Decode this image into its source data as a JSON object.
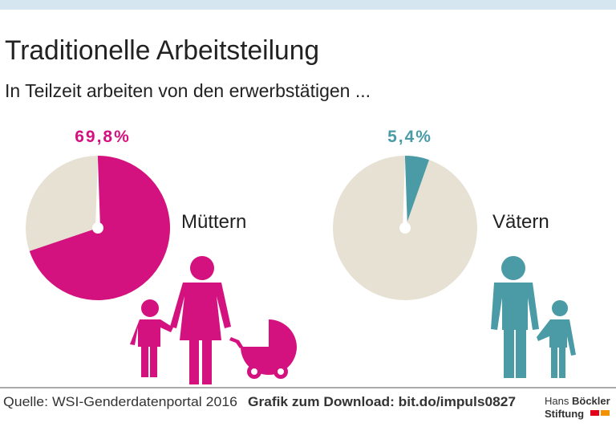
{
  "title": "Traditionelle Arbeitsteilung",
  "subtitle": "In Teilzeit arbeiten von den erwerbstätigen ...",
  "chart_data": [
    {
      "type": "pie",
      "label": "Müttern",
      "values": [
        69.8
      ],
      "value_labels": [
        "69,8%"
      ],
      "color": "#d4127f",
      "rest_color": "#e6e1d2"
    },
    {
      "type": "pie",
      "label": "Vätern",
      "values": [
        5.4
      ],
      "value_labels": [
        "5,4%"
      ],
      "color": "#4a9ba6",
      "rest_color": "#e6e1d2"
    }
  ],
  "footer": {
    "source": "Quelle: WSI-Genderdatenportal 2016",
    "download": "Grafik zum Download: bit.do/impuls0827",
    "logo_line1_a": "Hans",
    "logo_line1_b": "Böckler",
    "logo_line2": "Stiftung"
  }
}
